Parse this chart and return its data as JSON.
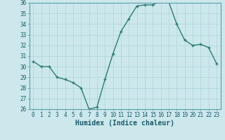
{
  "xlabel": "Humidex (Indice chaleur)",
  "x": [
    0,
    1,
    2,
    3,
    4,
    5,
    6,
    7,
    8,
    9,
    10,
    11,
    12,
    13,
    14,
    15,
    16,
    17,
    18,
    19,
    20,
    21,
    22,
    23
  ],
  "y": [
    30.5,
    30.0,
    30.0,
    29.0,
    28.8,
    28.5,
    28.0,
    26.0,
    26.2,
    28.8,
    31.2,
    33.3,
    34.5,
    35.7,
    35.8,
    35.8,
    36.2,
    36.1,
    34.0,
    32.5,
    32.0,
    32.1,
    31.8,
    30.3
  ],
  "line_color": "#2e7d6e",
  "marker": "+",
  "marker_size": 3,
  "bg_color": "#cce8ec",
  "grid_color": "#b0d8de",
  "ylim": [
    26,
    36
  ],
  "xlim": [
    -0.5,
    23.5
  ],
  "yticks": [
    26,
    27,
    28,
    29,
    30,
    31,
    32,
    33,
    34,
    35,
    36
  ],
  "xticks": [
    0,
    1,
    2,
    3,
    4,
    5,
    6,
    7,
    8,
    9,
    10,
    11,
    12,
    13,
    14,
    15,
    16,
    17,
    18,
    19,
    20,
    21,
    22,
    23
  ],
  "tick_fontsize": 5.5,
  "label_fontsize": 7,
  "linewidth": 1.0,
  "spine_color": "#5a9ea8"
}
